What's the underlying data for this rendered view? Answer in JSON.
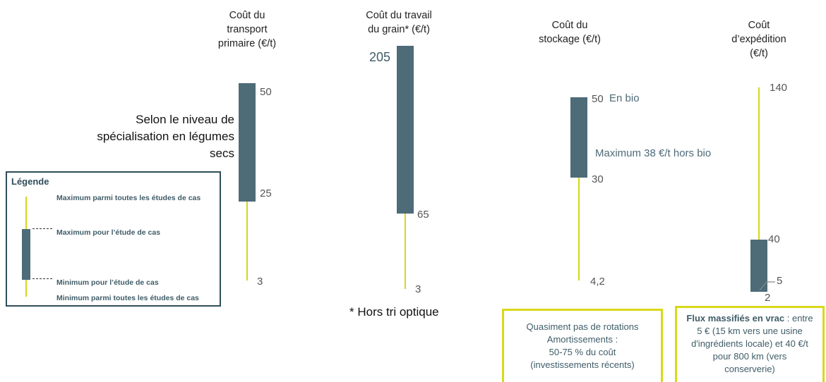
{
  "chart_data": {
    "type": "candlestick-range",
    "series": [
      {
        "title": "Coût du transport primaire (€/t)",
        "min": 3,
        "box_low": 25,
        "box_high": 50,
        "max": 50,
        "labels": {
          "high": "50",
          "low": "25",
          "min": "3"
        }
      },
      {
        "title": "Coût du travail du grain* (€/t)",
        "min": 3,
        "box_low": 65,
        "box_high": 205,
        "max": 205,
        "labels": {
          "high": "205",
          "low": "65",
          "min": "3"
        }
      },
      {
        "title": "Coût du stockage (€/t)",
        "min": 4.2,
        "box_low": 30,
        "box_high": 50,
        "max": 50,
        "labels": {
          "high": "50",
          "low": "30",
          "min": "4,2"
        }
      },
      {
        "title": "Coût d'expédition (€/t)",
        "min": 2,
        "box_low": 2,
        "box_high": 40,
        "max": 140,
        "labels": {
          "max": "140",
          "high": "40",
          "mid": "5",
          "low": "2"
        }
      }
    ]
  },
  "titles": {
    "transport": "Coût du\ntransport\nprimaire (€/t)",
    "travail": "Coût du travail\ndu grain* (€/t)",
    "stockage": "Coût du\nstockage (€/t)",
    "expedition": "Coût\nd’expédition\n(€/t)"
  },
  "values": {
    "t_high": "50",
    "t_low": "25",
    "t_min": "3",
    "g_high": "205",
    "g_low": "65",
    "g_min": "3",
    "s_high": "50",
    "s_low": "30",
    "s_min": "4,2",
    "e_max": "140",
    "e_high": "40",
    "e_mid": "5",
    "e_low": "2"
  },
  "notes": {
    "side": "Selon le niveau de\nspécialisation en légumes\nsecs",
    "en_bio": "En bio",
    "max_hors_bio": "Maximum 38 €/t  hors bio",
    "footnote": "* Hors tri optique"
  },
  "legend": {
    "title": "Légende",
    "max_all": "Maximum parmi toutes les études de cas",
    "max_case": "Maximum pour l’étude de cas",
    "min_case": "Minimum pour l’étude de cas",
    "min_all": "Minimum parmi toutes les études de cas"
  },
  "callouts": {
    "stockage": "Quasiment pas de rotations\nAmortissements :\n50-75 % du coût\n(investissements récents)",
    "expedition_bold": "Flux massifiés en vrac",
    "expedition_rest": " : entre\n5 € (15 km vers une usine\nd'ingrédients locale) et 40 €/t\npour 800 km (vers\nconserverie)"
  },
  "colors": {
    "box": "#4e6b78",
    "wick": "#d6d61a",
    "callout_border": "#d9d91a"
  }
}
